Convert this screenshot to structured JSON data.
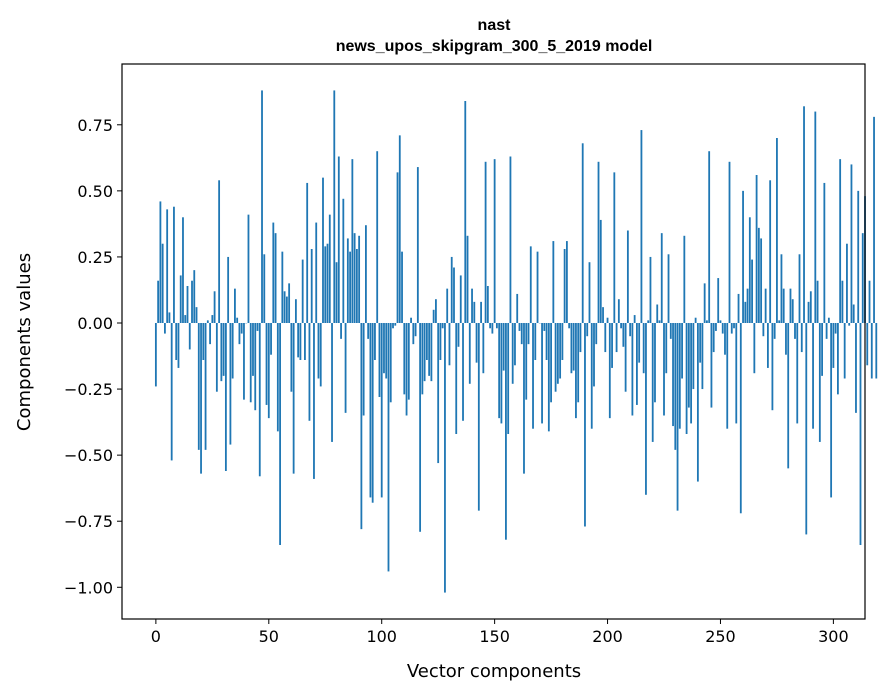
{
  "chart_data": {
    "type": "bar",
    "title": "nast",
    "subtitle": "news_upos_skipgram_300_5_2019 model",
    "xlabel": "Vector components",
    "ylabel": "Components values",
    "xlim": [
      -15,
      314
    ],
    "ylim": [
      -1.12,
      0.98
    ],
    "xticks": [
      0,
      50,
      100,
      150,
      200,
      250,
      300
    ],
    "xtick_labels": [
      "0",
      "50",
      "100",
      "150",
      "200",
      "250",
      "300"
    ],
    "yticks": [
      -1.0,
      -0.75,
      -0.5,
      -0.25,
      0.0,
      0.25,
      0.5,
      0.75
    ],
    "ytick_labels": [
      "−1.00",
      "−0.75",
      "−0.50",
      "−0.25",
      "0.00",
      "0.25",
      "0.50",
      "0.75"
    ],
    "bar_color": "#1f77b4",
    "grid": false,
    "values": [
      -0.24,
      0.16,
      0.46,
      0.3,
      -0.04,
      0.43,
      0.04,
      -0.52,
      0.44,
      -0.14,
      -0.17,
      0.18,
      0.4,
      0.03,
      0.14,
      -0.1,
      0.16,
      0.2,
      0.06,
      -0.48,
      -0.57,
      -0.14,
      -0.48,
      0.01,
      -0.08,
      0.03,
      0.12,
      -0.26,
      0.54,
      -0.22,
      -0.2,
      -0.56,
      0.25,
      -0.46,
      -0.21,
      0.13,
      0.02,
      -0.08,
      -0.04,
      -0.29,
      0.0,
      0.41,
      -0.3,
      -0.2,
      -0.33,
      -0.03,
      -0.58,
      0.88,
      0.26,
      -0.31,
      -0.36,
      -0.12,
      0.38,
      0.34,
      -0.41,
      -0.84,
      0.27,
      0.12,
      0.1,
      0.15,
      -0.26,
      -0.57,
      0.09,
      -0.13,
      -0.14,
      0.24,
      -0.14,
      0.53,
      -0.37,
      0.28,
      -0.59,
      0.38,
      -0.21,
      -0.24,
      0.55,
      0.29,
      0.3,
      0.41,
      -0.45,
      0.88,
      0.23,
      0.63,
      -0.06,
      0.47,
      -0.34,
      0.32,
      0.27,
      0.62,
      0.34,
      0.28,
      0.33,
      -0.78,
      -0.35,
      0.37,
      -0.06,
      -0.66,
      -0.68,
      -0.14,
      0.65,
      -0.28,
      -0.66,
      -0.19,
      -0.21,
      -0.94,
      -0.3,
      -0.02,
      -0.01,
      0.57,
      0.71,
      0.27,
      -0.27,
      -0.35,
      -0.29,
      0.02,
      -0.08,
      -0.05,
      0.59,
      -0.79,
      -0.27,
      -0.22,
      -0.14,
      -0.2,
      -0.22,
      0.05,
      0.09,
      -0.53,
      -0.14,
      -0.02,
      -1.02,
      0.13,
      -0.16,
      0.25,
      0.21,
      -0.42,
      -0.09,
      0.18,
      -0.37,
      0.84,
      0.33,
      -0.23,
      0.13,
      0.08,
      -0.15,
      -0.71,
      0.08,
      -0.19,
      0.61,
      0.14,
      -0.02,
      -0.04,
      0.62,
      -0.02,
      -0.36,
      -0.38,
      -0.18,
      -0.82,
      -0.42,
      0.63,
      -0.23,
      -0.16,
      0.11,
      -0.03,
      -0.08,
      -0.57,
      -0.29,
      -0.08,
      0.29,
      -0.4,
      -0.14,
      0.27,
      0.0,
      -0.38,
      -0.03,
      -0.14,
      -0.41,
      -0.3,
      0.31,
      -0.26,
      -0.23,
      -0.21,
      -0.14,
      0.28,
      0.31,
      -0.02,
      -0.19,
      -0.18,
      -0.36,
      -0.3,
      -0.11,
      0.68,
      -0.77,
      -0.05,
      0.23,
      -0.4,
      -0.24,
      -0.08,
      0.61,
      0.39,
      0.06,
      -0.11,
      0.02,
      -0.36,
      -0.17,
      0.57,
      -0.11,
      0.09,
      -0.02,
      -0.09,
      -0.26,
      0.35,
      -0.05,
      -0.35,
      0.03,
      -0.31,
      -0.15,
      0.73,
      -0.19,
      -0.65,
      0.01,
      0.25,
      -0.45,
      -0.3,
      0.07,
      0.01,
      0.34,
      -0.35,
      -0.19,
      0.26,
      -0.06,
      -0.39,
      -0.48,
      -0.71,
      -0.4,
      -0.21,
      0.33,
      -0.42,
      -0.32,
      -0.38,
      -0.25,
      0.02,
      -0.6,
      -0.15,
      -0.25,
      0.15,
      0.01,
      0.65,
      -0.32,
      -0.11,
      -0.03,
      0.17,
      0.01,
      -0.04,
      -0.12,
      -0.4,
      0.61,
      -0.04,
      -0.02,
      -0.38,
      0.11,
      -0.72,
      0.5,
      0.08,
      0.13,
      0.4,
      0.24,
      -0.19,
      0.56,
      0.36,
      0.32,
      -0.05,
      0.13,
      -0.17,
      0.54,
      -0.33,
      -0.06,
      0.7,
      0.01,
      0.26,
      0.13,
      -0.12,
      -0.55,
      0.13,
      0.09,
      -0.06,
      -0.38,
      0.26,
      -0.11,
      0.82,
      -0.8,
      0.08,
      0.12,
      -0.4,
      0.8,
      0.16,
      -0.45,
      -0.2,
      0.53,
      -0.06,
      0.02,
      -0.66,
      -0.17,
      -0.04,
      -0.27,
      0.62,
      0.16,
      -0.21,
      0.3,
      -0.01,
      0.6,
      0.07,
      -0.34,
      0.5,
      -0.84,
      0.34,
      0.48,
      -0.16,
      0.16,
      -0.21,
      0.78,
      -0.21
    ]
  }
}
